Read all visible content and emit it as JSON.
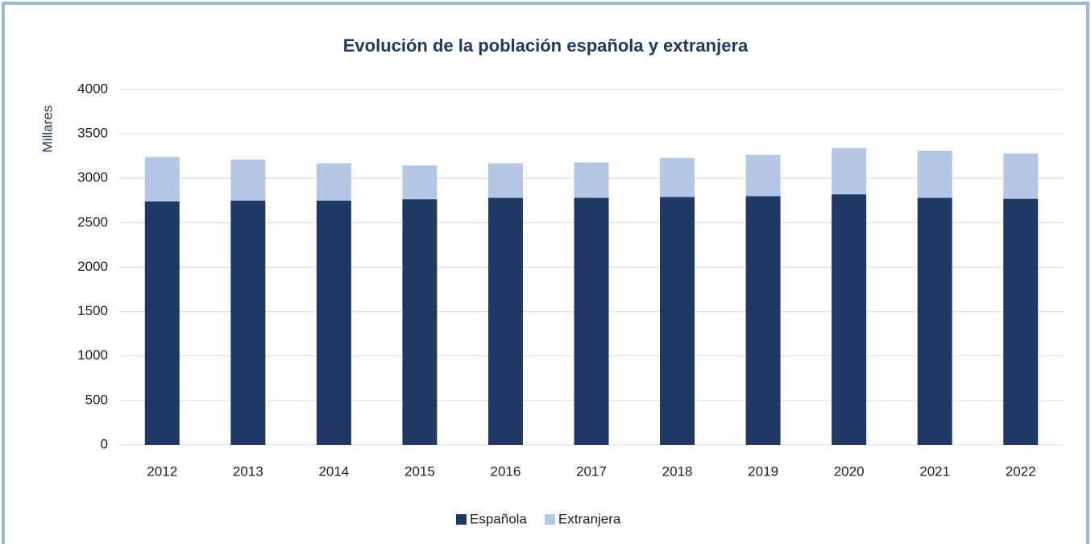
{
  "chart_data": {
    "type": "stacked_bar",
    "title": "Evolución de la población española y extranjera",
    "y_label": "Millares",
    "categories": [
      "2012",
      "2013",
      "2014",
      "2015",
      "2016",
      "2017",
      "2018",
      "2019",
      "2020",
      "2021",
      "2022"
    ],
    "series": [
      {
        "name": "Española",
        "color": "#203864",
        "values": [
          2740,
          2750,
          2750,
          2765,
          2780,
          2780,
          2790,
          2800,
          2820,
          2780,
          2770
        ]
      },
      {
        "name": "Extranjera",
        "color": "#b4c7e7",
        "values": [
          500,
          460,
          420,
          380,
          390,
          400,
          440,
          465,
          520,
          530,
          510
        ]
      }
    ],
    "ylim": [
      0,
      4000
    ],
    "yticks": [
      0,
      500,
      1000,
      1500,
      2000,
      2500,
      3000,
      3500,
      4000
    ],
    "grid": true,
    "legend": "bottom"
  }
}
